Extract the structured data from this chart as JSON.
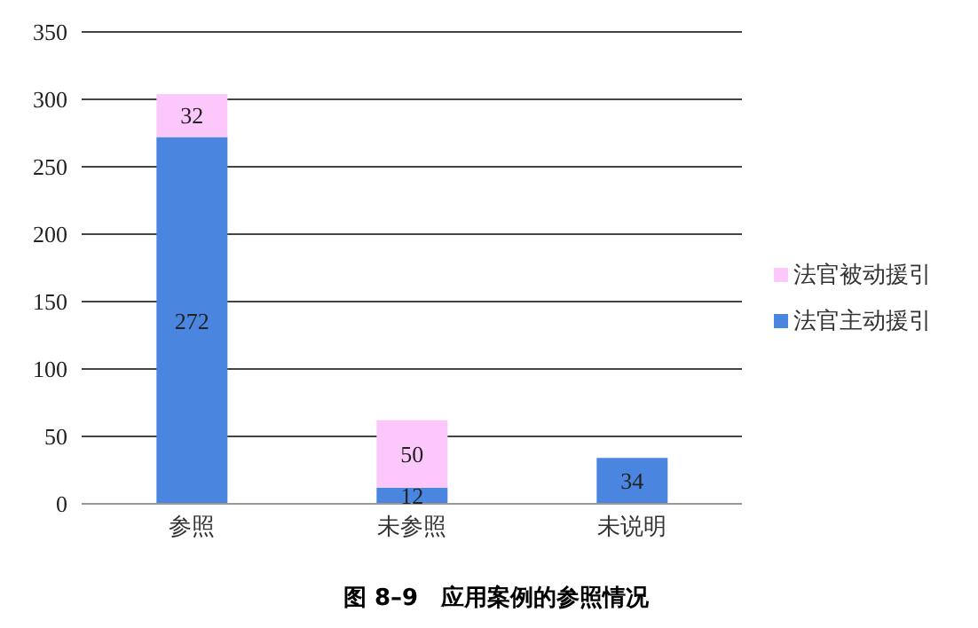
{
  "chart_data": {
    "type": "bar",
    "title": "图 8–9　应用案例的参照情况",
    "categories": [
      "参照",
      "未参照",
      "未说明"
    ],
    "stacked": true,
    "series": [
      {
        "name": "法官主动援引",
        "color": "#4a86e0",
        "values": [
          272,
          12,
          34
        ]
      },
      {
        "name": "法官被动援引",
        "color": "#fcc8fc",
        "values": [
          32,
          50,
          null
        ]
      }
    ],
    "ylim": [
      0,
      350
    ],
    "yticks": [
      0,
      50,
      100,
      150,
      200,
      250,
      300,
      350
    ],
    "grid": "y",
    "legend": "right",
    "data_labels": true
  }
}
